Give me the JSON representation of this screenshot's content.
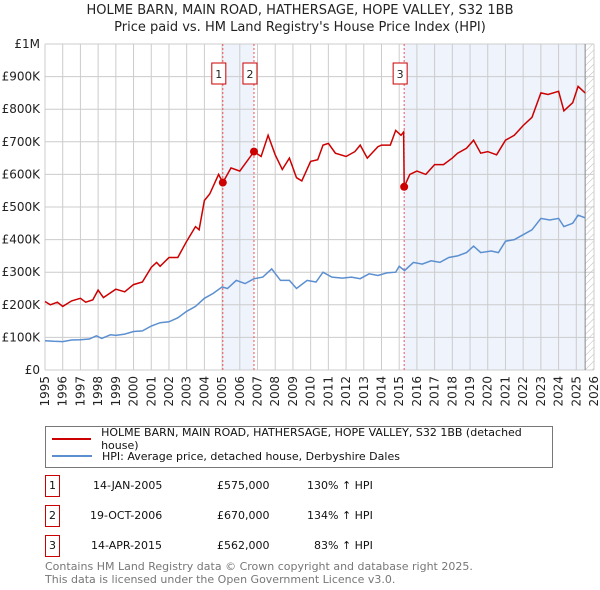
{
  "title": "HOLME BARN, MAIN ROAD, HATHERSAGE, HOPE VALLEY, S32 1BB",
  "subtitle": "Price paid vs. HM Land Registry's House Price Index (HPI)",
  "chart_data": {
    "type": "line",
    "title": "HOLME BARN, MAIN ROAD, HATHERSAGE, HOPE VALLEY, S32 1BB",
    "xlim": [
      1995,
      2026
    ],
    "ylim": [
      0,
      1000000
    ],
    "x_ticks": [
      "1995",
      "1996",
      "1997",
      "1998",
      "1999",
      "2000",
      "2001",
      "2002",
      "2003",
      "2004",
      "2005",
      "2006",
      "2007",
      "2008",
      "2009",
      "2010",
      "2011",
      "2012",
      "2013",
      "2014",
      "2015",
      "2016",
      "2017",
      "2018",
      "2019",
      "2020",
      "2021",
      "2022",
      "2023",
      "2024",
      "2025",
      "2026"
    ],
    "y_ticks": [
      {
        "v": 0,
        "label": "£0"
      },
      {
        "v": 100000,
        "label": "£100K"
      },
      {
        "v": 200000,
        "label": "£200K"
      },
      {
        "v": 300000,
        "label": "£300K"
      },
      {
        "v": 400000,
        "label": "£400K"
      },
      {
        "v": 500000,
        "label": "£500K"
      },
      {
        "v": 600000,
        "label": "£600K"
      },
      {
        "v": 700000,
        "label": "£700K"
      },
      {
        "v": 800000,
        "label": "£800K"
      },
      {
        "v": 900000,
        "label": "£900K"
      },
      {
        "v": 1000000,
        "label": "£1M"
      }
    ],
    "grid": true,
    "shaded_ranges": [
      [
        2005.04,
        2006.8
      ],
      [
        2015.28,
        2025.5
      ]
    ],
    "hatched_from": 2025.5,
    "series": [
      {
        "name": "HOLME BARN, MAIN ROAD, HATHERSAGE, HOPE VALLEY, S32 1BB (detached house)",
        "color": "#cc0000",
        "x": [
          1995,
          1995.3,
          1995.7,
          1996,
          1996.5,
          1997,
          1997.3,
          1997.7,
          1998,
          1998.3,
          1999,
          1999.5,
          2000,
          2000.5,
          2001,
          2001.3,
          2001.5,
          2002,
          2002.5,
          2003,
          2003.5,
          2003.7,
          2004,
          2004.3,
          2004.8,
          2005.04,
          2005.5,
          2006,
          2006.8,
          2007.2,
          2007.6,
          2008,
          2008.4,
          2008.8,
          2009.2,
          2009.5,
          2010,
          2010.4,
          2010.7,
          2011,
          2011.4,
          2012,
          2012.5,
          2012.8,
          2013.2,
          2013.8,
          2014,
          2014.5,
          2014.8,
          2015.1,
          2015.25,
          2015.28,
          2015.6,
          2016,
          2016.5,
          2017,
          2017.5,
          2018,
          2018.3,
          2018.8,
          2019.2,
          2019.6,
          2020,
          2020.5,
          2021,
          2021.5,
          2022,
          2022.5,
          2023,
          2023.4,
          2024,
          2024.3,
          2024.8,
          2025.1,
          2025.5
        ],
        "y": [
          210000,
          200000,
          208000,
          195000,
          212000,
          220000,
          208000,
          215000,
          245000,
          222000,
          248000,
          240000,
          262000,
          270000,
          315000,
          330000,
          318000,
          345000,
          345000,
          395000,
          440000,
          430000,
          520000,
          540000,
          600000,
          575000,
          620000,
          610000,
          670000,
          655000,
          720000,
          660000,
          615000,
          650000,
          590000,
          580000,
          640000,
          645000,
          690000,
          695000,
          665000,
          655000,
          670000,
          690000,
          650000,
          685000,
          690000,
          690000,
          735000,
          720000,
          730000,
          562000,
          600000,
          610000,
          600000,
          630000,
          630000,
          650000,
          665000,
          680000,
          705000,
          665000,
          670000,
          660000,
          705000,
          720000,
          750000,
          775000,
          850000,
          845000,
          855000,
          795000,
          820000,
          870000,
          850000
        ]
      },
      {
        "name": "HPI: Average price, detached house, Derbyshire Dales",
        "color": "#5b8fd0",
        "x": [
          1995,
          1995.5,
          1996,
          1996.5,
          1997,
          1997.5,
          1997.9,
          1998.2,
          1998.7,
          1999,
          1999.5,
          2000,
          2000.5,
          2001,
          2001.5,
          2002,
          2002.5,
          2003,
          2003.5,
          2004,
          2004.5,
          2005,
          2005.3,
          2005.8,
          2006.3,
          2006.8,
          2007.3,
          2007.8,
          2008.3,
          2008.8,
          2009.2,
          2009.8,
          2010.3,
          2010.7,
          2011.2,
          2011.8,
          2012.3,
          2012.8,
          2013.3,
          2013.8,
          2014.3,
          2014.8,
          2015,
          2015.3,
          2015.8,
          2016.3,
          2016.8,
          2017.3,
          2017.8,
          2018.3,
          2018.8,
          2019.2,
          2019.6,
          2020.2,
          2020.6,
          2021,
          2021.5,
          2022,
          2022.5,
          2023,
          2023.5,
          2024,
          2024.3,
          2024.8,
          2025.1,
          2025.5
        ],
        "y": [
          90000,
          88000,
          87000,
          92000,
          93000,
          95000,
          105000,
          97000,
          108000,
          106000,
          110000,
          118000,
          120000,
          135000,
          145000,
          148000,
          160000,
          180000,
          195000,
          220000,
          235000,
          255000,
          250000,
          275000,
          265000,
          280000,
          285000,
          310000,
          275000,
          275000,
          250000,
          275000,
          270000,
          300000,
          285000,
          282000,
          285000,
          280000,
          295000,
          290000,
          298000,
          300000,
          318000,
          305000,
          330000,
          325000,
          335000,
          330000,
          345000,
          350000,
          360000,
          380000,
          360000,
          365000,
          360000,
          395000,
          400000,
          415000,
          430000,
          465000,
          460000,
          465000,
          440000,
          450000,
          475000,
          467000
        ]
      }
    ],
    "sales": [
      {
        "num": "1",
        "x": 2005.04,
        "y": 575000
      },
      {
        "num": "2",
        "x": 2006.8,
        "y": 670000
      },
      {
        "num": "3",
        "x": 2015.28,
        "y": 562000
      }
    ]
  },
  "legend": [
    {
      "label": "HOLME BARN, MAIN ROAD, HATHERSAGE, HOPE VALLEY, S32 1BB (detached house)",
      "color": "#cc0000"
    },
    {
      "label": "HPI: Average price, detached house, Derbyshire Dales",
      "color": "#5b8fd0"
    }
  ],
  "transactions": [
    {
      "num": "1",
      "date": "14-JAN-2005",
      "price": "£575,000",
      "hpi": "130% ↑ HPI"
    },
    {
      "num": "2",
      "date": "19-OCT-2006",
      "price": "£670,000",
      "hpi": "134% ↑ HPI"
    },
    {
      "num": "3",
      "date": "14-APR-2015",
      "price": "£562,000",
      "hpi": "83% ↑ HPI"
    }
  ],
  "footer": [
    "Contains HM Land Registry data © Crown copyright and database right 2025.",
    "This data is licensed under the Open Government Licence v3.0."
  ]
}
